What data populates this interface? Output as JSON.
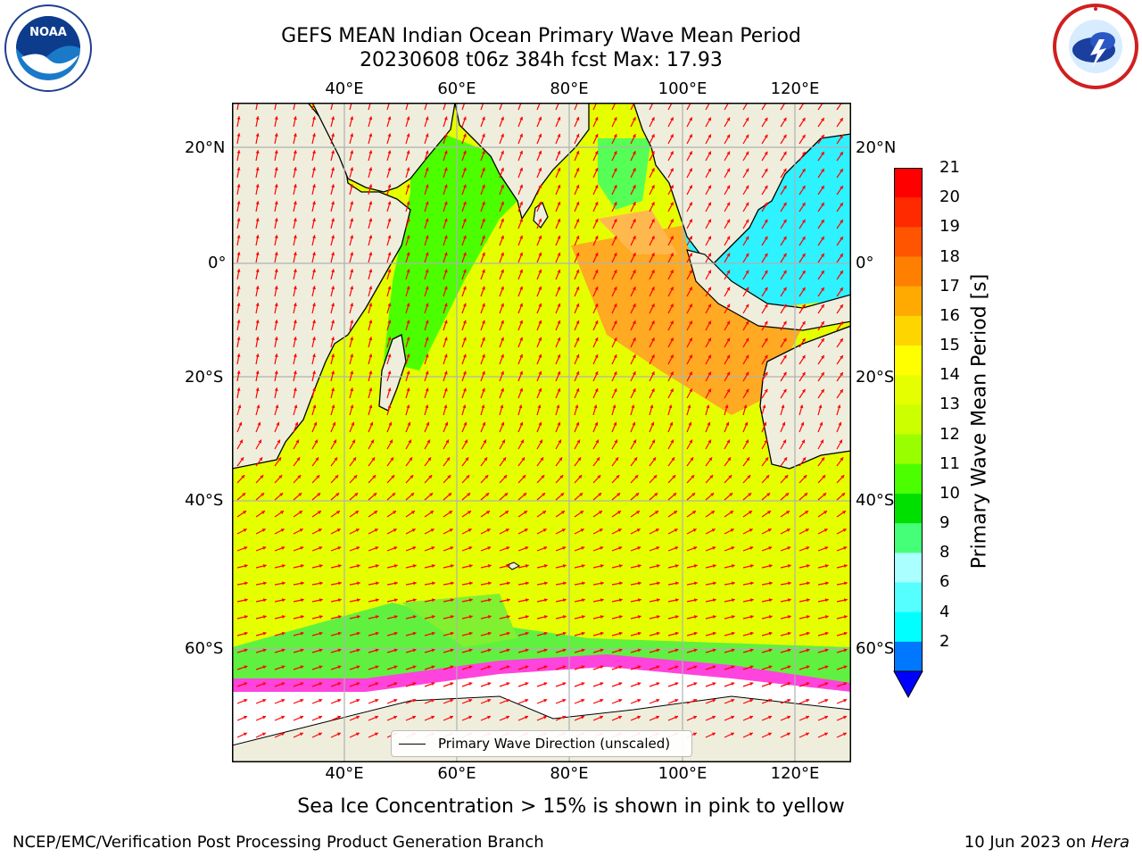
{
  "header": {
    "title_line1": "GEFS MEAN Indian Ocean Primary Wave Mean Period",
    "title_line2": "20230608 t06z 384h fcst   Max: 17.93"
  },
  "logos": {
    "left": {
      "name": "noaa-logo",
      "text": "NOAA"
    },
    "right": {
      "name": "nws-logo"
    }
  },
  "map": {
    "lon_labels": [
      "40°E",
      "60°E",
      "80°E",
      "100°E",
      "120°E"
    ],
    "lat_labels": [
      "20°N",
      "0°",
      "20°S",
      "40°S",
      "60°S"
    ],
    "legend_label": "Primary Wave Direction (unscaled)",
    "arrow_color": "#ff0000",
    "land_color": "#efeedd",
    "ice_color": "#ffffff"
  },
  "colorbar": {
    "label": "Primary Wave Mean Period [s]",
    "ticks": [
      "21",
      "20",
      "19",
      "18",
      "17",
      "16",
      "15",
      "14",
      "13",
      "12",
      "11",
      "10",
      "9",
      "8",
      "6",
      "4",
      "2"
    ],
    "colors": [
      "#ff0000",
      "#ff2a00",
      "#ff5500",
      "#ff8000",
      "#ffaa00",
      "#ffd500",
      "#ffff00",
      "#e5ff00",
      "#ccff00",
      "#99ff00",
      "#4cff00",
      "#00e000",
      "#44ff77",
      "#aaffff",
      "#55ffff",
      "#00ffff",
      "#0077ff"
    ],
    "extend_color": "#0000ff"
  },
  "subtitle": "Sea Ice Concentration > 15% is shown in pink to yellow",
  "footer": {
    "left": "NCEP/EMC/Verification Post Processing Product Generation Branch",
    "right_prefix": "10 Jun 2023 on ",
    "right_host": "Hera"
  }
}
